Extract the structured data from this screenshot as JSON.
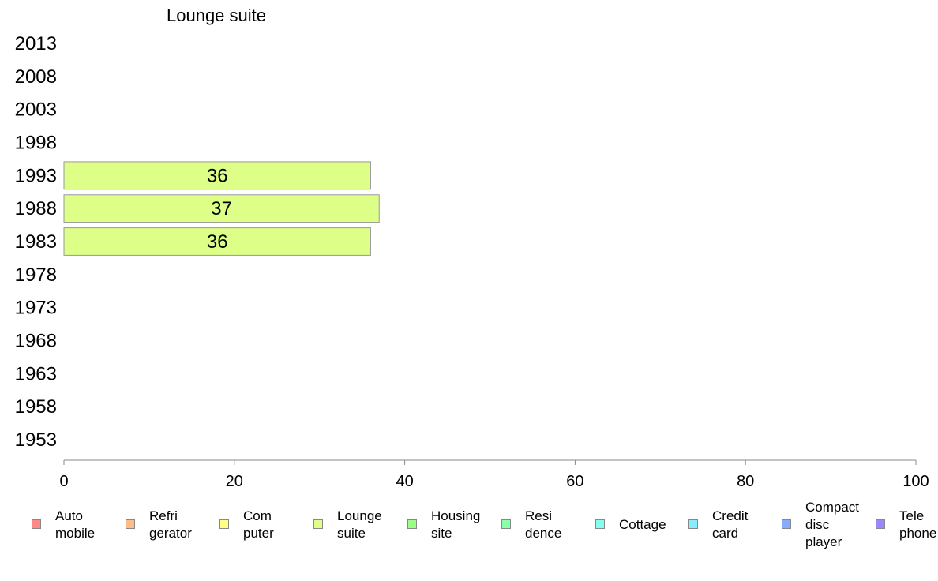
{
  "chart_data": {
    "type": "bar",
    "orientation": "horizontal",
    "title": "Lounge suite",
    "categories": [
      "1953",
      "1958",
      "1963",
      "1968",
      "1973",
      "1978",
      "1983",
      "1988",
      "1993",
      "1998",
      "2003",
      "2008",
      "2013"
    ],
    "series": [
      {
        "name": "Lounge suite",
        "values": [
          null,
          null,
          null,
          null,
          null,
          null,
          36,
          37,
          36,
          null,
          null,
          null,
          null
        ],
        "color": "#ddff88"
      }
    ],
    "value_labels": [
      "",
      "",
      "",
      "",
      "",
      "",
      "36",
      "37",
      "36",
      "",
      "",
      "",
      ""
    ],
    "xlim": [
      0,
      100
    ],
    "xticks": [
      "0",
      "20",
      "40",
      "60",
      "80",
      "100"
    ],
    "grid": false,
    "legend_position": "bottom",
    "legend": [
      {
        "label": "Auto\nmobile",
        "color": "#ff8888"
      },
      {
        "label": "Refri\ngerator",
        "color": "#ffbb88"
      },
      {
        "label": "Com\nputer",
        "color": "#ffff88"
      },
      {
        "label": "Lounge\nsuite",
        "color": "#ddff88"
      },
      {
        "label": "Housing\nsite",
        "color": "#99ff88"
      },
      {
        "label": "Resi\ndence",
        "color": "#88ffaa"
      },
      {
        "label": "Cottage",
        "color": "#88ffee"
      },
      {
        "label": "Credit\ncard",
        "color": "#88eeff"
      },
      {
        "label": "Compact\ndisc\nplayer",
        "color": "#88aaff"
      },
      {
        "label": "Tele\nphone",
        "color": "#9988ff"
      }
    ]
  }
}
